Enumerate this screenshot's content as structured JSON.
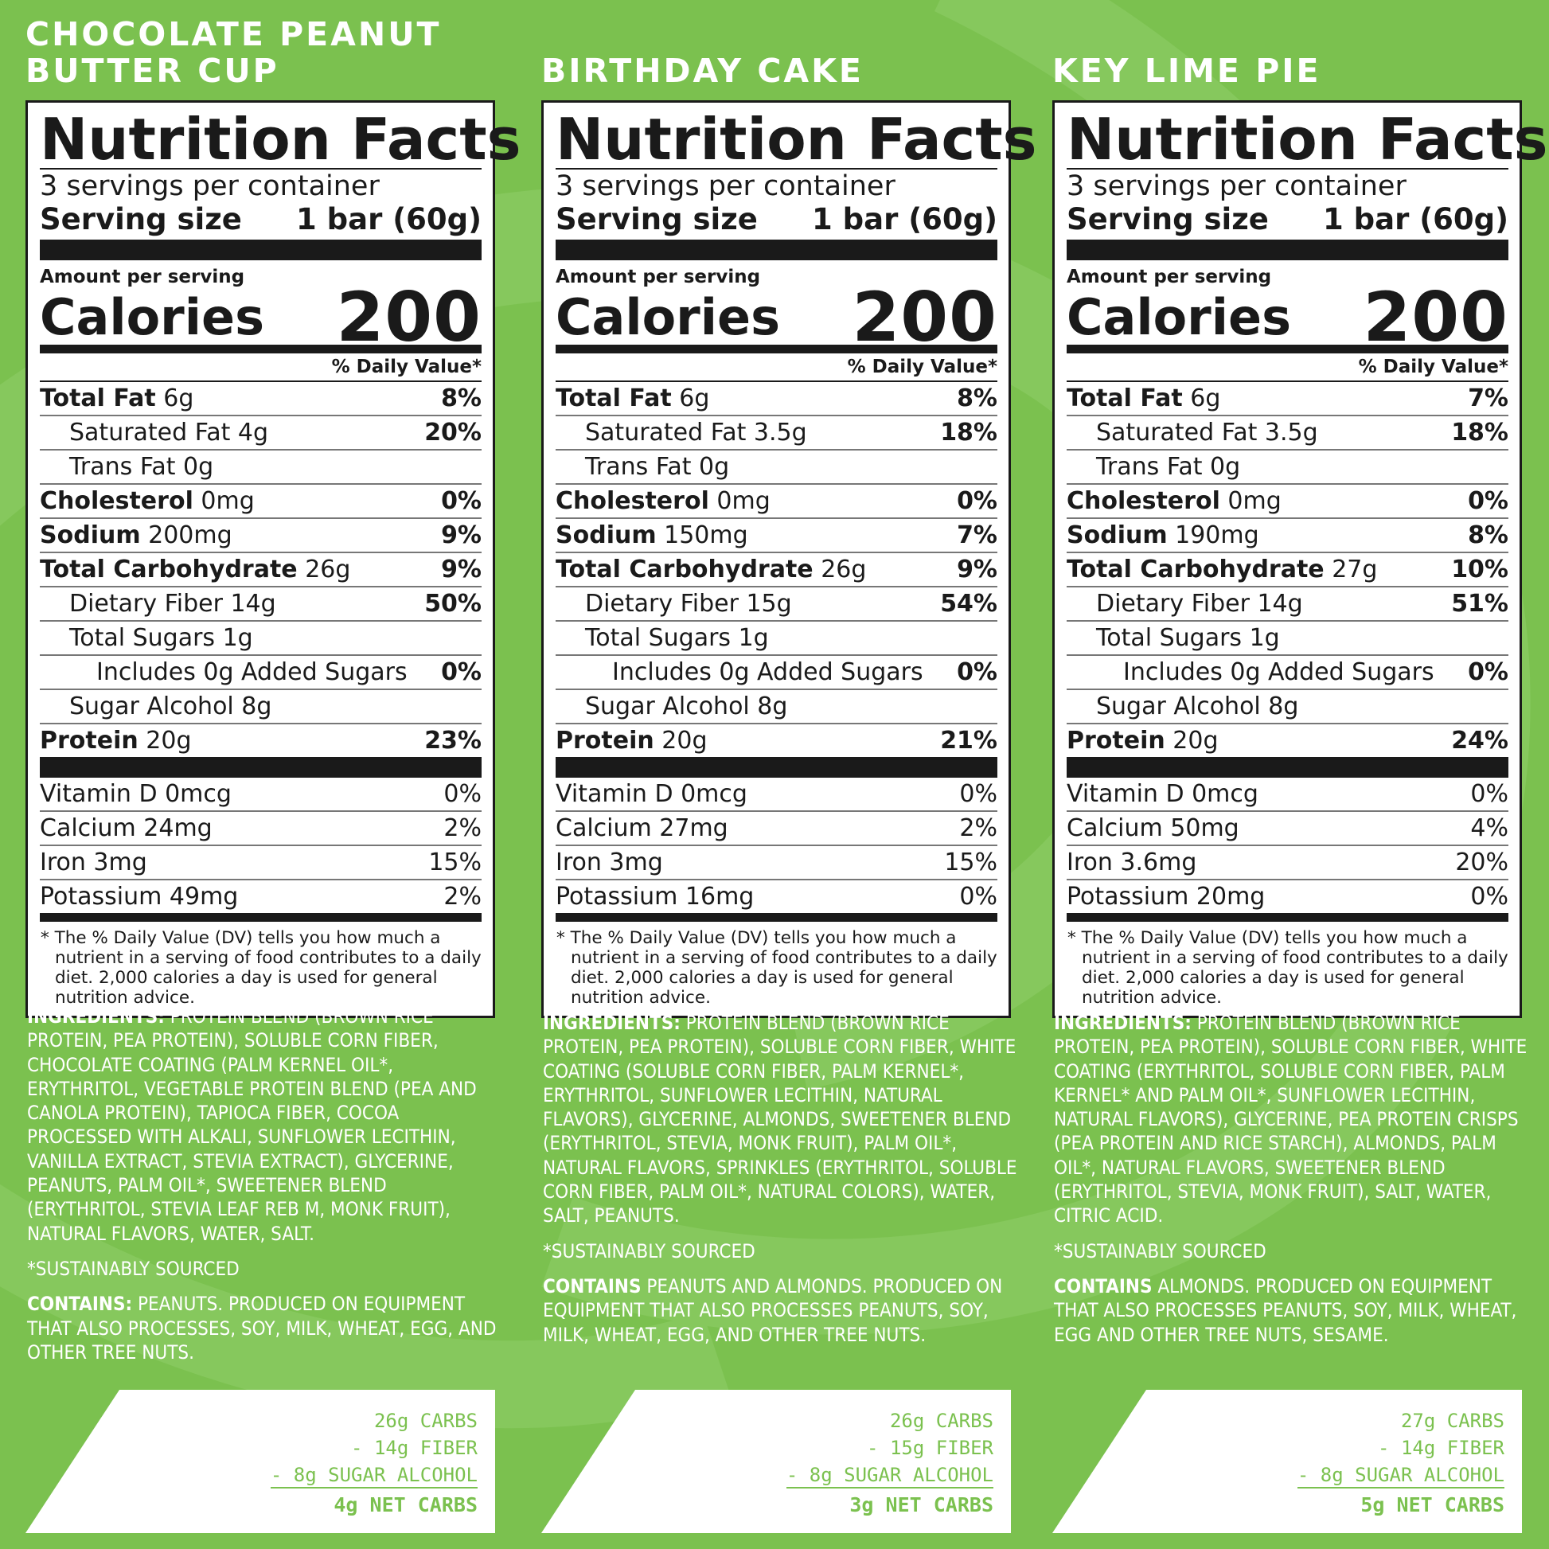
{
  "common": {
    "nf_title": "Nutrition Facts",
    "servings": "3 servings per container",
    "serving_size_label": "Serving size",
    "serving_size_value": "1 bar (60g)",
    "amount_per_serving": "Amount per serving",
    "calories_label": "Calories",
    "dv_header": "% Daily Value*",
    "footnote": "* The % Daily Value (DV) tells you how much a nutrient in a serving of food contributes to a daily diet. 2,000 calories a day is used for general nutrition advice.",
    "sustainably": "*SUSTAINABLY SOURCED"
  },
  "flavors": [
    {
      "name": "CHOCOLATE PEANUT BUTTER CUP",
      "calories": "200",
      "nutrients": [
        {
          "label": "Total Fat",
          "amount": "6g",
          "pct": "8%",
          "level": 0,
          "bold": true
        },
        {
          "label": "Saturated Fat",
          "amount": "4g",
          "pct": "20%",
          "level": 1,
          "bold": false
        },
        {
          "label": "Trans Fat",
          "amount": "0g",
          "pct": "",
          "level": 1,
          "bold": false
        },
        {
          "label": "Cholesterol",
          "amount": "0mg",
          "pct": "0%",
          "level": 0,
          "bold": true
        },
        {
          "label": "Sodium",
          "amount": "200mg",
          "pct": "9%",
          "level": 0,
          "bold": true
        },
        {
          "label": "Total Carbohydrate",
          "amount": "26g",
          "pct": "9%",
          "level": 0,
          "bold": true
        },
        {
          "label": "Dietary Fiber",
          "amount": "14g",
          "pct": "50%",
          "level": 1,
          "bold": false
        },
        {
          "label": "Total Sugars",
          "amount": "1g",
          "pct": "",
          "level": 1,
          "bold": false
        },
        {
          "label": "Includes 0g Added Sugars",
          "amount": "",
          "pct": "0%",
          "level": 2,
          "bold": false
        },
        {
          "label": "Sugar Alcohol",
          "amount": "8g",
          "pct": "",
          "level": 1,
          "bold": false
        },
        {
          "label": "Protein",
          "amount": "20g",
          "pct": "23%",
          "level": 0,
          "bold": true
        }
      ],
      "vitamins": [
        {
          "label": "Vitamin D 0mcg",
          "pct": "0%"
        },
        {
          "label": "Calcium 24mg",
          "pct": "2%"
        },
        {
          "label": "Iron 3mg",
          "pct": "15%"
        },
        {
          "label": "Potassium 49mg",
          "pct": "2%"
        }
      ],
      "ingredients_label": "INGREDIENTS:",
      "ingredients": "PROTEIN BLEND (BROWN RICE PROTEIN, PEA PROTEIN), SOLUBLE CORN FIBER, CHOCOLATE COATING (PALM KERNEL OIL*, ERYTHRITOL, VEGETABLE PROTEIN BLEND (PEA AND CANOLA PROTEIN), TAPIOCA FIBER, COCOA PROCESSED WITH ALKALI, SUNFLOWER LECITHIN, VANILLA EXTRACT, STEVIA EXTRACT), GLYCERINE, PEANUTS, PALM OIL*, SWEETENER BLEND (ERYTHRITOL, STEVIA LEAF REB M, MONK FRUIT), NATURAL FLAVORS, WATER, SALT.",
      "contains_label": "CONTAINS:",
      "contains": "PEANUTS. PRODUCED ON EQUIPMENT THAT ALSO PROCESSES, SOY, MILK, WHEAT, EGG, AND OTHER TREE NUTS.",
      "net": {
        "carbs": "26g CARBS",
        "fiber": "- 14g FIBER",
        "sugar_alcohol": "- 8g SUGAR ALCOHOL",
        "net_carbs": "4g NET CARBS"
      }
    },
    {
      "name": "BIRTHDAY CAKE",
      "calories": "200",
      "nutrients": [
        {
          "label": "Total Fat",
          "amount": "6g",
          "pct": "8%",
          "level": 0,
          "bold": true
        },
        {
          "label": "Saturated Fat",
          "amount": "3.5g",
          "pct": "18%",
          "level": 1,
          "bold": false
        },
        {
          "label": "Trans Fat",
          "amount": "0g",
          "pct": "",
          "level": 1,
          "bold": false
        },
        {
          "label": "Cholesterol",
          "amount": "0mg",
          "pct": "0%",
          "level": 0,
          "bold": true
        },
        {
          "label": "Sodium",
          "amount": "150mg",
          "pct": "7%",
          "level": 0,
          "bold": true
        },
        {
          "label": "Total Carbohydrate",
          "amount": "26g",
          "pct": "9%",
          "level": 0,
          "bold": true
        },
        {
          "label": "Dietary Fiber",
          "amount": "15g",
          "pct": "54%",
          "level": 1,
          "bold": false
        },
        {
          "label": "Total Sugars",
          "amount": "1g",
          "pct": "",
          "level": 1,
          "bold": false
        },
        {
          "label": "Includes 0g Added Sugars",
          "amount": "",
          "pct": "0%",
          "level": 2,
          "bold": false
        },
        {
          "label": "Sugar Alcohol",
          "amount": "8g",
          "pct": "",
          "level": 1,
          "bold": false
        },
        {
          "label": "Protein",
          "amount": "20g",
          "pct": "21%",
          "level": 0,
          "bold": true
        }
      ],
      "vitamins": [
        {
          "label": "Vitamin D 0mcg",
          "pct": "0%"
        },
        {
          "label": "Calcium 27mg",
          "pct": "2%"
        },
        {
          "label": "Iron 3mg",
          "pct": "15%"
        },
        {
          "label": "Potassium 16mg",
          "pct": "0%"
        }
      ],
      "ingredients_label": "INGREDIENTS:",
      "ingredients": "PROTEIN BLEND (BROWN RICE PROTEIN, PEA PROTEIN), SOLUBLE CORN FIBER, WHITE COATING (SOLUBLE CORN FIBER, PALM KERNEL*, ERYTHRITOL, SUNFLOWER LECITHIN, NATURAL FLAVORS), GLYCERINE, ALMONDS, SWEETENER BLEND (ERYTHRITOL, STEVIA, MONK FRUIT), PALM OIL*, NATURAL FLAVORS, SPRINKLES (ERYTHRITOL, SOLUBLE CORN FIBER, PALM OIL*, NATURAL COLORS), WATER, SALT, PEANUTS.",
      "contains_label": "CONTAINS",
      "contains": "PEANUTS AND ALMONDS. PRODUCED ON EQUIPMENT THAT ALSO PROCESSES PEANUTS, SOY, MILK, WHEAT, EGG, AND OTHER TREE NUTS.",
      "net": {
        "carbs": "26g CARBS",
        "fiber": "- 15g FIBER",
        "sugar_alcohol": "- 8g SUGAR ALCOHOL",
        "net_carbs": "3g NET CARBS"
      }
    },
    {
      "name": "KEY LIME PIE",
      "calories": "200",
      "nutrients": [
        {
          "label": "Total Fat",
          "amount": "6g",
          "pct": "7%",
          "level": 0,
          "bold": true
        },
        {
          "label": "Saturated Fat",
          "amount": "3.5g",
          "pct": "18%",
          "level": 1,
          "bold": false
        },
        {
          "label": "Trans Fat",
          "amount": "0g",
          "pct": "",
          "level": 1,
          "bold": false
        },
        {
          "label": "Cholesterol",
          "amount": "0mg",
          "pct": "0%",
          "level": 0,
          "bold": true
        },
        {
          "label": "Sodium",
          "amount": "190mg",
          "pct": "8%",
          "level": 0,
          "bold": true
        },
        {
          "label": "Total Carbohydrate",
          "amount": "27g",
          "pct": "10%",
          "level": 0,
          "bold": true
        },
        {
          "label": "Dietary Fiber",
          "amount": "14g",
          "pct": "51%",
          "level": 1,
          "bold": false
        },
        {
          "label": "Total Sugars",
          "amount": "1g",
          "pct": "",
          "level": 1,
          "bold": false
        },
        {
          "label": "Includes 0g Added Sugars",
          "amount": "",
          "pct": "0%",
          "level": 2,
          "bold": false
        },
        {
          "label": "Sugar Alcohol",
          "amount": "8g",
          "pct": "",
          "level": 1,
          "bold": false
        },
        {
          "label": "Protein",
          "amount": "20g",
          "pct": "24%",
          "level": 0,
          "bold": true
        }
      ],
      "vitamins": [
        {
          "label": "Vitamin D 0mcg",
          "pct": "0%"
        },
        {
          "label": "Calcium 50mg",
          "pct": "4%"
        },
        {
          "label": "Iron 3.6mg",
          "pct": "20%"
        },
        {
          "label": "Potassium 20mg",
          "pct": "0%"
        }
      ],
      "ingredients_label": "INGREDIENTS:",
      "ingredients": "PROTEIN BLEND (BROWN RICE PROTEIN, PEA PROTEIN), SOLUBLE CORN FIBER, WHITE COATING (ERYTHRITOL, SOLUBLE CORN FIBER, PALM KERNEL* AND PALM OIL*, SUNFLOWER LECITHIN, NATURAL FLAVORS), GLYCERINE, PEA PROTEIN CRISPS (PEA PROTEIN AND RICE STARCH), ALMONDS, PALM OIL*, NATURAL FLAVORS, SWEETENER BLEND (ERYTHRITOL, STEVIA, MONK FRUIT), SALT, WATER, CITRIC ACID.",
      "contains_label": "CONTAINS",
      "contains": "ALMONDS. PRODUCED ON EQUIPMENT THAT ALSO PROCESSES PEANUTS, SOY, MILK, WHEAT, EGG AND OTHER TREE NUTS, SESAME.",
      "net": {
        "carbs": "27g CARBS",
        "fiber": "- 14g FIBER",
        "sugar_alcohol": "- 8g SUGAR ALCOHOL",
        "net_carbs": "5g NET CARBS"
      }
    }
  ],
  "colors": {
    "background": "#7bc14f",
    "swirl": "#86c85d",
    "label_text": "#1a1a1a",
    "accent_text": "#7bc14f"
  }
}
